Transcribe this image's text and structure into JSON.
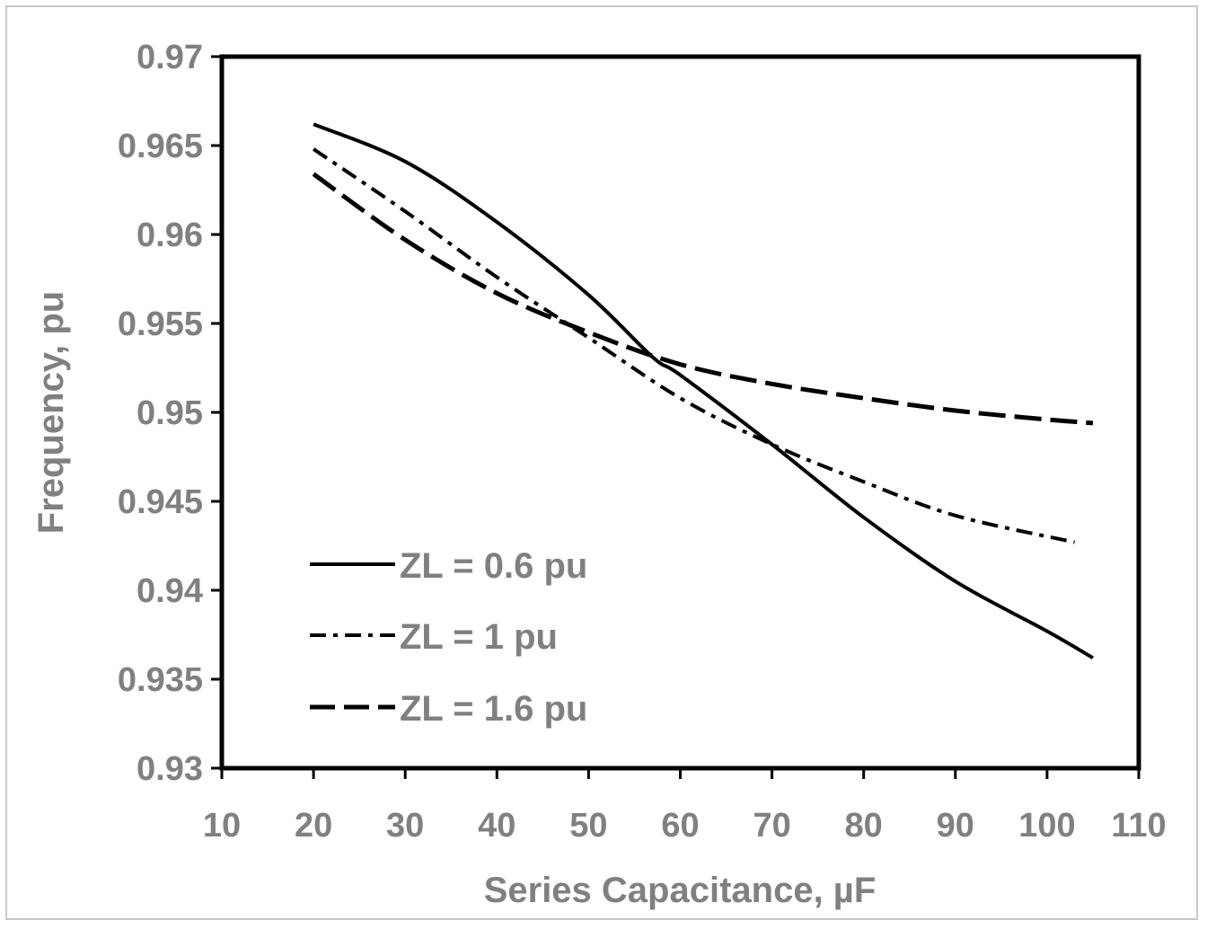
{
  "chart_data": {
    "type": "line",
    "title": "",
    "xlabel": "Series Capacitance, µF",
    "ylabel": "Frequency, pu",
    "xlim": [
      10,
      110
    ],
    "ylim": [
      0.93,
      0.97
    ],
    "x_ticks": [
      "10",
      "20",
      "30",
      "40",
      "50",
      "60",
      "70",
      "80",
      "90",
      "100",
      "110"
    ],
    "y_ticks": [
      "0.93",
      "0.935",
      "0.94",
      "0.945",
      "0.95",
      "0.955",
      "0.96",
      "0.965",
      "0.97"
    ],
    "grid": false,
    "legend_position": "bottom-left",
    "series": [
      {
        "name": "ZL = 0.6 pu",
        "style": "solid",
        "x": [
          20,
          30,
          40,
          50,
          57,
          60,
          70,
          80,
          90,
          100,
          105
        ],
        "y": [
          0.9662,
          0.9641,
          0.9607,
          0.9566,
          0.9531,
          0.9521,
          0.9482,
          0.9441,
          0.9405,
          0.9377,
          0.9362
        ]
      },
      {
        "name": "ZL = 1 pu",
        "style": "dash-dot",
        "x": [
          20,
          30,
          40,
          50,
          60,
          70,
          80,
          90,
          103
        ],
        "y": [
          0.9648,
          0.9613,
          0.9576,
          0.9542,
          0.9508,
          0.9482,
          0.9461,
          0.9442,
          0.9427
        ]
      },
      {
        "name": "ZL = 1.6 pu",
        "style": "long-dash",
        "x": [
          20,
          30,
          40,
          50,
          60,
          70,
          80,
          90,
          100,
          105
        ],
        "y": [
          0.9634,
          0.9597,
          0.9567,
          0.9545,
          0.9527,
          0.9516,
          0.9508,
          0.9501,
          0.9496,
          0.9494
        ]
      }
    ]
  }
}
